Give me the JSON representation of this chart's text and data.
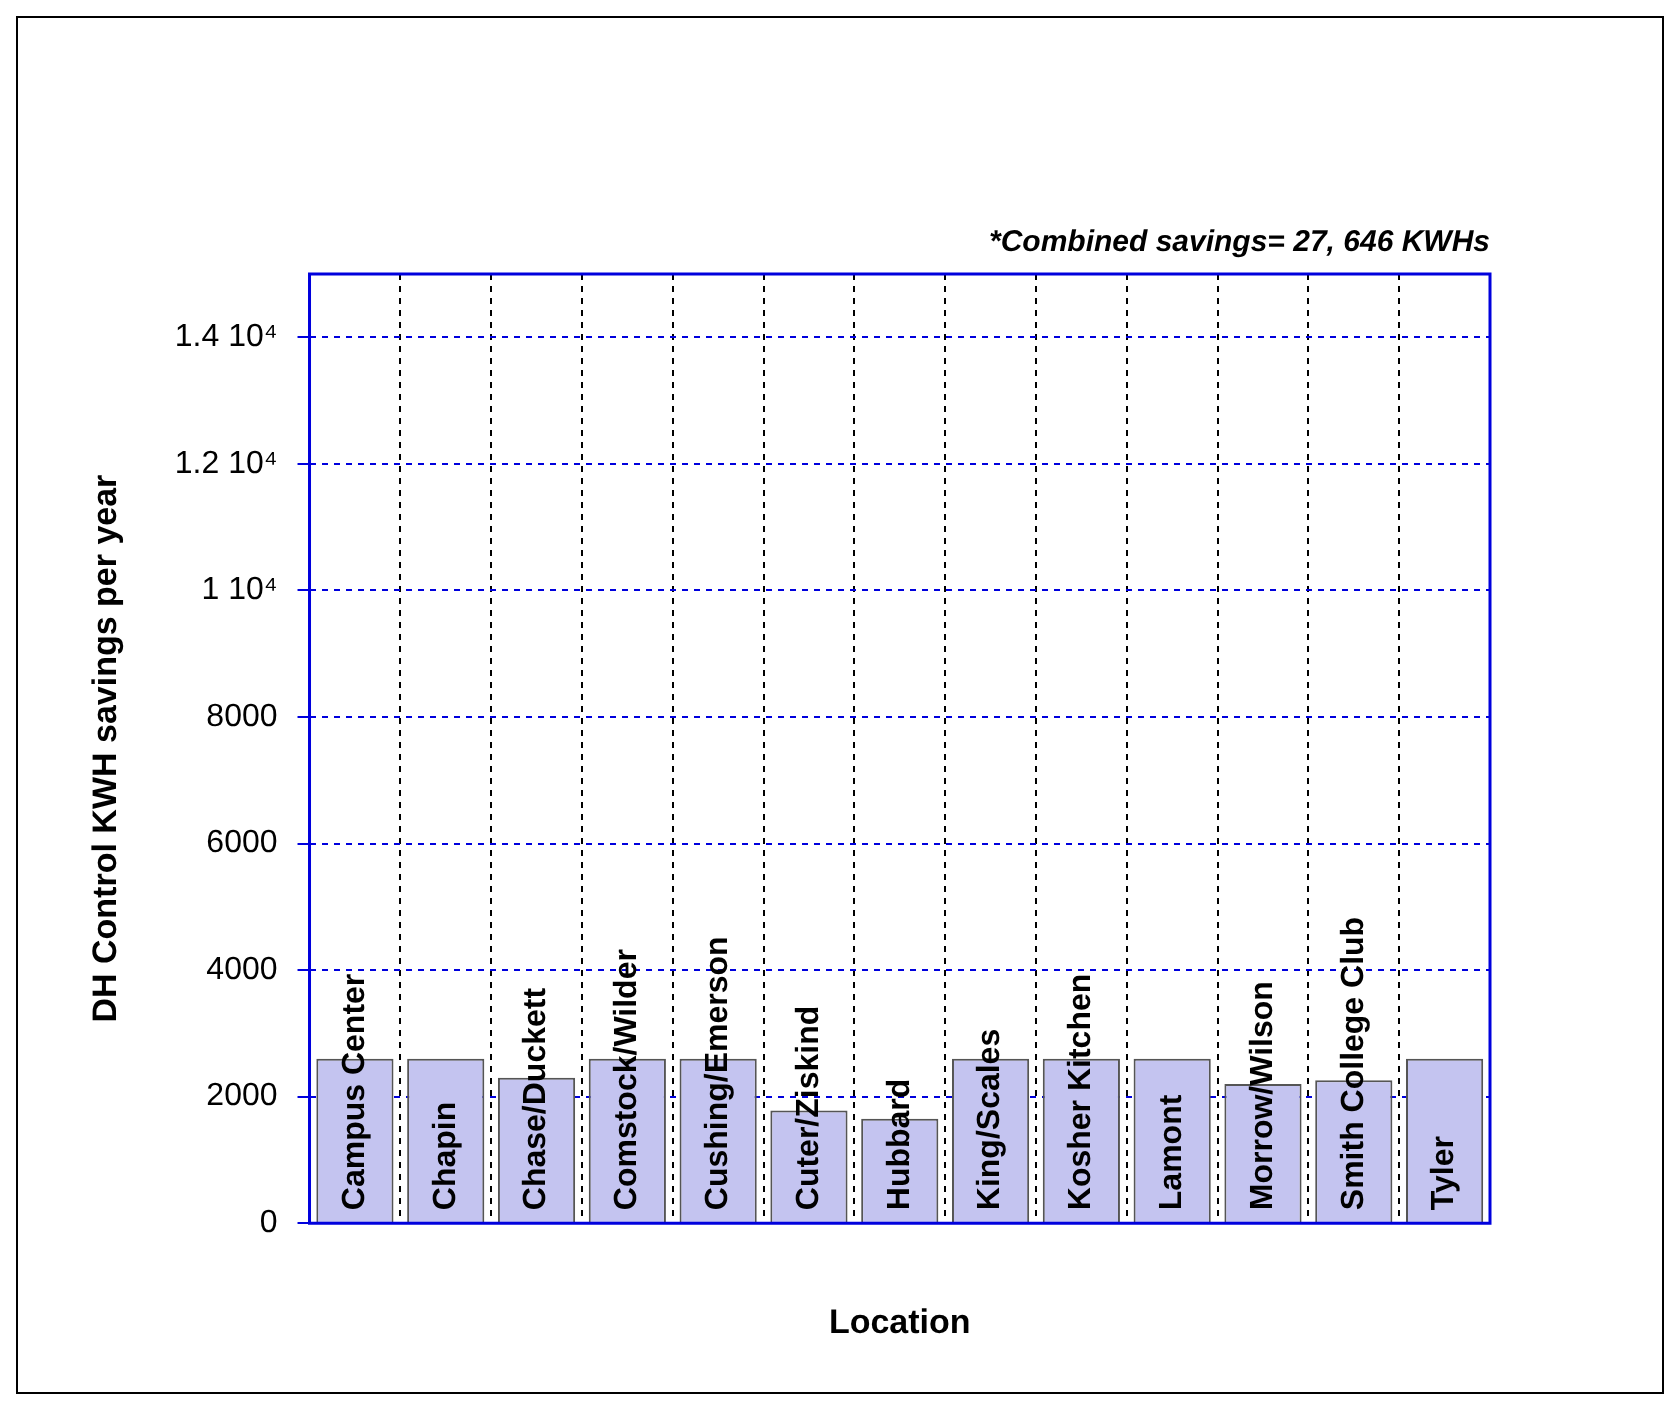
{
  "chart_data": {
    "type": "bar",
    "xlabel": "Location",
    "ylabel": "DH Control KWH savings per year",
    "annotations": [
      "*Combined savings= 27, 646 KWHs"
    ],
    "categories": [
      "Campus Center",
      "Chapin",
      "Chase/Duckett",
      "Comstock/Wilder",
      "Cushing/Emerson",
      "Cuter/Ziskind",
      "Hubbard",
      "King/Scales",
      "Kosher Kitchen",
      "Lamont",
      "Morrow/Wilson",
      "Smith College Club",
      "Tyler"
    ],
    "values": [
      2600,
      2600,
      2300,
      2600,
      2600,
      1780,
      1650,
      2600,
      2600,
      2600,
      2200,
      2260,
      2600
    ],
    "color": "#c4c4f0",
    "ylim": [
      0,
      15000
    ],
    "yticks": [
      0,
      2000,
      4000,
      6000,
      8000,
      {
        "value": 10000,
        "label": "1 10⁴"
      },
      {
        "value": 12000,
        "label": "1.2 10⁴"
      },
      {
        "value": 14000,
        "label": "1.4 10⁴"
      }
    ],
    "grid": true
  }
}
